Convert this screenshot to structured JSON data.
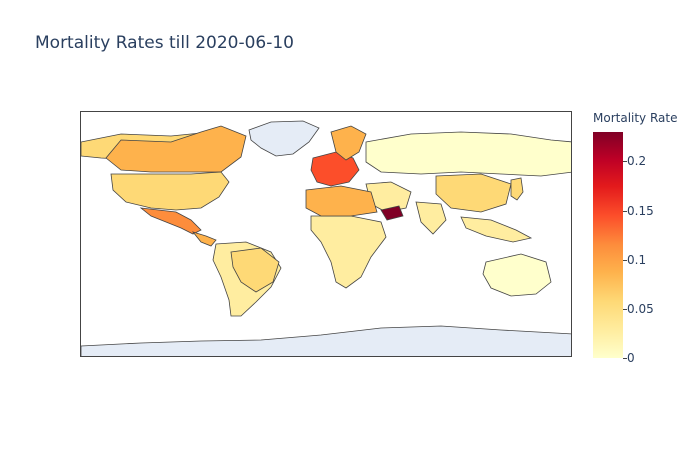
{
  "title": "Mortality Rates till 2020-06-10",
  "colorbar": {
    "title": "Mortality Rate",
    "range": [
      0,
      0.23
    ],
    "ticks": [
      {
        "label": "0",
        "value": 0
      },
      {
        "label": "0.05",
        "value": 0.05
      },
      {
        "label": "0.1",
        "value": 0.1
      },
      {
        "label": "0.15",
        "value": 0.15
      },
      {
        "label": "0.2",
        "value": 0.2
      }
    ]
  },
  "colors": {
    "no_data": "#e5ecf6",
    "border": "#444444",
    "scale": [
      "#ffffcc",
      "#ffeda0",
      "#fed976",
      "#feb24c",
      "#fd8d3c",
      "#fc4e2a",
      "#e31a1c",
      "#bd0026",
      "#800026"
    ]
  },
  "map_data": {
    "projection": "equirectangular",
    "regions": [
      {
        "name": "North America",
        "value": 0.06
      },
      {
        "name": "Canada",
        "value": 0.08
      },
      {
        "name": "United States",
        "value": 0.05
      },
      {
        "name": "Mexico",
        "value": 0.12
      },
      {
        "name": "Central America",
        "value": 0.08
      },
      {
        "name": "South America",
        "value": 0.03
      },
      {
        "name": "Brazil",
        "value": 0.05
      },
      {
        "name": "Greenland",
        "value": null
      },
      {
        "name": "Western Europe",
        "value": 0.15
      },
      {
        "name": "Scandinavia",
        "value": 0.1
      },
      {
        "name": "Russia",
        "value": 0.01
      },
      {
        "name": "Middle East",
        "value": 0.04
      },
      {
        "name": "Yemen",
        "value": 0.22
      },
      {
        "name": "Africa",
        "value": 0.04
      },
      {
        "name": "Northern Africa",
        "value": 0.08
      },
      {
        "name": "China",
        "value": 0.05
      },
      {
        "name": "India",
        "value": 0.03
      },
      {
        "name": "Southeast Asia",
        "value": 0.04
      },
      {
        "name": "Japan",
        "value": 0.05
      },
      {
        "name": "Australia",
        "value": 0.01
      },
      {
        "name": "Antarctica",
        "value": null
      }
    ]
  }
}
